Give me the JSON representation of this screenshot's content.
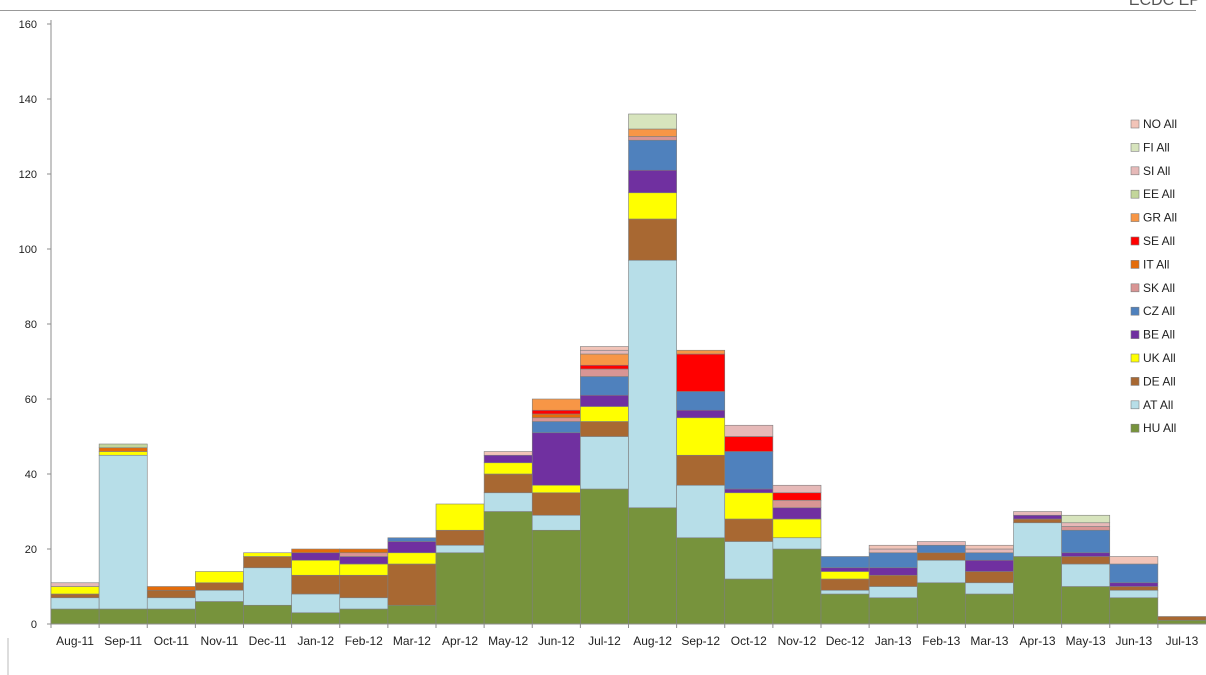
{
  "corner_label": "ECDC EP",
  "chart_data": {
    "type": "bar",
    "stacked": true,
    "categories": [
      "Aug-11",
      "Sep-11",
      "Oct-11",
      "Nov-11",
      "Dec-11",
      "Jan-12",
      "Feb-12",
      "Mar-12",
      "Apr-12",
      "May-12",
      "Jun-12",
      "Jul-12",
      "Aug-12",
      "Sep-12",
      "Oct-12",
      "Nov-12",
      "Dec-12",
      "Jan-13",
      "Feb-13",
      "Mar-13",
      "Apr-13",
      "May-13",
      "Jun-13",
      "Jul-13"
    ],
    "ylim": [
      0,
      160
    ],
    "yticks": [
      0,
      20,
      40,
      60,
      80,
      100,
      120,
      140,
      160
    ],
    "legend_position": "right",
    "series": [
      {
        "name": "HU All",
        "color": "#77933C",
        "values": [
          4,
          4,
          4,
          6,
          5,
          3,
          4,
          5,
          19,
          30,
          25,
          36,
          31,
          23,
          12,
          20,
          8,
          7,
          11,
          8,
          18,
          10,
          7,
          1
        ]
      },
      {
        "name": "AT All",
        "color": "#B7DEE8",
        "values": [
          3,
          41,
          3,
          3,
          10,
          5,
          3,
          0,
          2,
          5,
          4,
          14,
          66,
          14,
          10,
          3,
          1,
          3,
          6,
          3,
          9,
          6,
          2,
          0
        ]
      },
      {
        "name": "DE All",
        "color": "#A86832",
        "values": [
          1,
          0,
          2,
          2,
          3,
          5,
          6,
          11,
          4,
          5,
          6,
          4,
          11,
          8,
          6,
          0,
          3,
          3,
          2,
          3,
          1,
          2,
          1,
          1
        ]
      },
      {
        "name": "UK All",
        "color": "#FFFF00",
        "values": [
          2,
          1,
          0,
          3,
          1,
          4,
          3,
          3,
          7,
          3,
          2,
          4,
          7,
          10,
          7,
          5,
          2,
          0,
          0,
          0,
          0,
          0,
          0,
          0
        ]
      },
      {
        "name": "BE All",
        "color": "#7030A0",
        "values": [
          0,
          0,
          0,
          0,
          0,
          2,
          2,
          3,
          0,
          2,
          14,
          3,
          6,
          2,
          1,
          3,
          1,
          2,
          0,
          3,
          1,
          1,
          1,
          0
        ]
      },
      {
        "name": "CZ All",
        "color": "#4F81BD",
        "values": [
          0,
          0,
          0,
          0,
          0,
          0,
          0,
          1,
          0,
          0,
          3,
          5,
          8,
          5,
          10,
          0,
          3,
          4,
          2,
          2,
          0,
          6,
          5,
          0
        ]
      },
      {
        "name": "SK All",
        "color": "#D99594",
        "values": [
          0,
          0,
          0,
          0,
          0,
          0,
          1,
          0,
          0,
          0,
          1,
          2,
          1,
          0,
          0,
          2,
          0,
          0,
          0,
          0,
          0,
          1,
          0,
          0
        ]
      },
      {
        "name": "IT All",
        "color": "#E46C0A",
        "values": [
          0,
          1,
          1,
          0,
          0,
          1,
          1,
          0,
          0,
          0,
          1,
          0,
          0,
          0,
          0,
          0,
          0,
          0,
          0,
          0,
          0,
          0,
          0,
          0
        ]
      },
      {
        "name": "SE All",
        "color": "#FF0000",
        "values": [
          0,
          0,
          0,
          0,
          0,
          0,
          0,
          0,
          0,
          0,
          1,
          1,
          0,
          10,
          4,
          2,
          0,
          0,
          0,
          0,
          0,
          0,
          0,
          0
        ]
      },
      {
        "name": "GR All",
        "color": "#F79646",
        "values": [
          0,
          0,
          0,
          0,
          0,
          0,
          0,
          0,
          0,
          0,
          3,
          3,
          2,
          1,
          0,
          0,
          0,
          0,
          0,
          0,
          0,
          0,
          0,
          0
        ]
      },
      {
        "name": "EE All",
        "color": "#C3D69B",
        "values": [
          0,
          1,
          0,
          0,
          0,
          0,
          0,
          0,
          0,
          0,
          0,
          0,
          0,
          0,
          0,
          0,
          0,
          0,
          0,
          0,
          0,
          0,
          0,
          0
        ]
      },
      {
        "name": "SI All",
        "color": "#E6B9B8",
        "values": [
          1,
          0,
          0,
          0,
          0,
          0,
          0,
          0,
          0,
          0,
          0,
          1,
          0,
          0,
          3,
          2,
          0,
          1,
          1,
          1,
          1,
          1,
          0,
          0
        ]
      },
      {
        "name": "FI All",
        "color": "#D7E4BD",
        "values": [
          0,
          0,
          0,
          0,
          0,
          0,
          0,
          0,
          0,
          0,
          0,
          0,
          4,
          0,
          0,
          0,
          0,
          0,
          0,
          0,
          0,
          2,
          0,
          0
        ]
      },
      {
        "name": "NO All",
        "color": "#F2C4B8",
        "values": [
          0,
          0,
          0,
          0,
          0,
          0,
          0,
          0,
          0,
          1,
          0,
          1,
          0,
          0,
          0,
          0,
          0,
          1,
          0,
          1,
          0,
          0,
          2,
          0
        ]
      }
    ]
  }
}
